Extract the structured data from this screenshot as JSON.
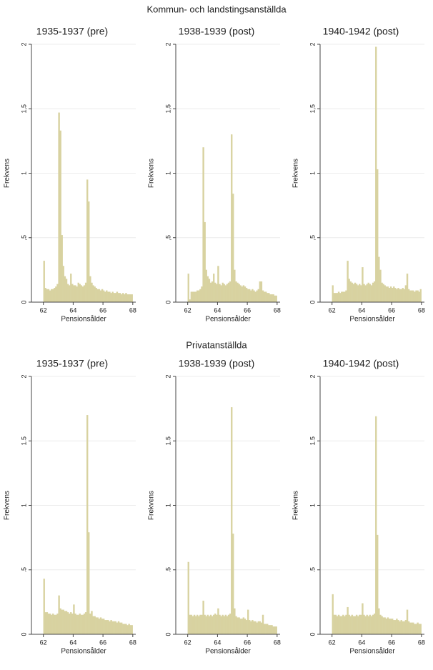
{
  "headings": [
    "Kommun- och landstingsanställda",
    "Privatanställda"
  ],
  "chart_data": [
    {
      "type": "histogram",
      "title": "1935-1937 (pre)",
      "xlabel": "Pensionsålder",
      "ylabel": "Frekvens",
      "color": "#d8d2a0",
      "grid": true,
      "xlim": [
        61.2,
        68.2
      ],
      "ylim": [
        0,
        2
      ],
      "xticks": [
        62,
        64,
        66,
        68
      ],
      "yticks": [
        0,
        {
          "value": 0.5,
          "label": ",5"
        },
        1,
        {
          "value": 1.5,
          "label": "1,5"
        },
        2
      ],
      "bins": [
        62,
        62.1,
        62.2,
        62.3,
        62.4,
        62.5,
        62.6,
        62.7,
        62.8,
        62.9,
        63,
        63.1,
        63.2,
        63.3,
        63.4,
        63.5,
        63.6,
        63.7,
        63.8,
        63.9,
        64,
        64.1,
        64.2,
        64.3,
        64.4,
        64.5,
        64.6,
        64.7,
        64.8,
        64.9,
        65,
        65.1,
        65.2,
        65.3,
        65.4,
        65.5,
        65.6,
        65.7,
        65.8,
        65.9,
        66,
        66.1,
        66.2,
        66.3,
        66.4,
        66.5,
        66.6,
        66.7,
        66.8,
        66.9,
        67,
        67.1,
        67.2,
        67.3,
        67.4,
        67.5,
        67.6,
        67.7,
        67.8,
        67.9,
        68
      ],
      "values": [
        0.32,
        0.11,
        0.1,
        0.1,
        0.09,
        0.1,
        0.1,
        0.11,
        0.12,
        0.14,
        1.47,
        1.33,
        0.52,
        0.28,
        0.2,
        0.18,
        0.14,
        0.13,
        0.22,
        0.14,
        0.13,
        0.13,
        0.12,
        0.15,
        0.14,
        0.13,
        0.12,
        0.13,
        0.15,
        0.95,
        0.78,
        0.2,
        0.15,
        0.13,
        0.12,
        0.11,
        0.1,
        0.1,
        0.09,
        0.1,
        0.09,
        0.08,
        0.09,
        0.08,
        0.08,
        0.07,
        0.08,
        0.07,
        0.07,
        0.08,
        0.07,
        0.07,
        0.06,
        0.07,
        0.06,
        0.07,
        0.06,
        0.06,
        0.06,
        0.06
      ]
    },
    {
      "type": "histogram",
      "title": "1938-1939 (post)",
      "xlabel": "Pensionsålder",
      "ylabel": "Frekvens",
      "color": "#d8d2a0",
      "grid": true,
      "xlim": [
        61.2,
        68.2
      ],
      "ylim": [
        0,
        2
      ],
      "xticks": [
        62,
        64,
        66,
        68
      ],
      "yticks": [
        0,
        {
          "value": 0.5,
          "label": ",5"
        },
        1,
        {
          "value": 1.5,
          "label": "1,5"
        },
        2
      ],
      "bins": [
        62,
        62.1,
        62.2,
        62.3,
        62.4,
        62.5,
        62.6,
        62.7,
        62.8,
        62.9,
        63,
        63.1,
        63.2,
        63.3,
        63.4,
        63.5,
        63.6,
        63.7,
        63.8,
        63.9,
        64,
        64.1,
        64.2,
        64.3,
        64.4,
        64.5,
        64.6,
        64.7,
        64.8,
        64.9,
        65,
        65.1,
        65.2,
        65.3,
        65.4,
        65.5,
        65.6,
        65.7,
        65.8,
        65.9,
        66,
        66.1,
        66.2,
        66.3,
        66.4,
        66.5,
        66.6,
        66.7,
        66.8,
        66.9,
        67,
        67.1,
        67.2,
        67.3,
        67.4,
        67.5,
        67.6,
        67.7,
        67.8,
        67.9,
        68
      ],
      "values": [
        0.22,
        0.02,
        0.08,
        0.08,
        0.08,
        0.08,
        0.09,
        0.09,
        0.1,
        0.12,
        1.2,
        0.62,
        0.25,
        0.2,
        0.18,
        0.15,
        0.16,
        0.22,
        0.15,
        0.14,
        0.28,
        0.14,
        0.13,
        0.15,
        0.14,
        0.13,
        0.14,
        0.15,
        0.16,
        1.3,
        0.84,
        0.25,
        0.16,
        0.15,
        0.14,
        0.13,
        0.12,
        0.13,
        0.12,
        0.11,
        0.1,
        0.1,
        0.09,
        0.1,
        0.09,
        0.08,
        0.09,
        0.1,
        0.16,
        0.16,
        0.09,
        0.08,
        0.08,
        0.07,
        0.07,
        0.06,
        0.06,
        0.06,
        0.05,
        0.05
      ]
    },
    {
      "type": "histogram",
      "title": "1940-1942 (post)",
      "xlabel": "Pensionsålder",
      "ylabel": "Frekvens",
      "color": "#d8d2a0",
      "grid": true,
      "xlim": [
        61.2,
        68.2
      ],
      "ylim": [
        0,
        2
      ],
      "xticks": [
        62,
        64,
        66,
        68
      ],
      "yticks": [
        0,
        {
          "value": 0.5,
          "label": ",5"
        },
        1,
        {
          "value": 1.5,
          "label": "1,5"
        },
        2
      ],
      "bins": [
        62,
        62.1,
        62.2,
        62.3,
        62.4,
        62.5,
        62.6,
        62.7,
        62.8,
        62.9,
        63,
        63.1,
        63.2,
        63.3,
        63.4,
        63.5,
        63.6,
        63.7,
        63.8,
        63.9,
        64,
        64.1,
        64.2,
        64.3,
        64.4,
        64.5,
        64.6,
        64.7,
        64.8,
        64.9,
        65,
        65.1,
        65.2,
        65.3,
        65.4,
        65.5,
        65.6,
        65.7,
        65.8,
        65.9,
        66,
        66.1,
        66.2,
        66.3,
        66.4,
        66.5,
        66.6,
        66.7,
        66.8,
        66.9,
        67,
        67.1,
        67.2,
        67.3,
        67.4,
        67.5,
        67.6,
        67.7,
        67.8,
        67.9,
        68
      ],
      "values": [
        0.13,
        0.07,
        0.07,
        0.07,
        0.08,
        0.07,
        0.08,
        0.08,
        0.08,
        0.09,
        0.32,
        0.18,
        0.16,
        0.15,
        0.14,
        0.15,
        0.14,
        0.13,
        0.14,
        0.13,
        0.27,
        0.14,
        0.13,
        0.14,
        0.15,
        0.14,
        0.13,
        0.15,
        0.16,
        1.98,
        1.03,
        0.35,
        0.25,
        0.15,
        0.14,
        0.13,
        0.12,
        0.12,
        0.11,
        0.12,
        0.11,
        0.12,
        0.11,
        0.1,
        0.11,
        0.1,
        0.1,
        0.11,
        0.1,
        0.13,
        0.22,
        0.1,
        0.09,
        0.09,
        0.09,
        0.08,
        0.09,
        0.09,
        0.08,
        0.1
      ]
    },
    {
      "type": "histogram",
      "title": "1935-1937 (pre)",
      "xlabel": "Pensionsålder",
      "ylabel": "Frekvens",
      "color": "#d8d2a0",
      "grid": true,
      "xlim": [
        61.2,
        68.2
      ],
      "ylim": [
        0,
        2
      ],
      "xticks": [
        62,
        64,
        66,
        68
      ],
      "yticks": [
        0,
        {
          "value": 0.5,
          "label": ".5"
        },
        1,
        1.5,
        2
      ],
      "bins": [
        62,
        62.1,
        62.2,
        62.3,
        62.4,
        62.5,
        62.6,
        62.7,
        62.8,
        62.9,
        63,
        63.1,
        63.2,
        63.3,
        63.4,
        63.5,
        63.6,
        63.7,
        63.8,
        63.9,
        64,
        64.1,
        64.2,
        64.3,
        64.4,
        64.5,
        64.6,
        64.7,
        64.8,
        64.9,
        65,
        65.1,
        65.2,
        65.3,
        65.4,
        65.5,
        65.6,
        65.7,
        65.8,
        65.9,
        66,
        66.1,
        66.2,
        66.3,
        66.4,
        66.5,
        66.6,
        66.7,
        66.8,
        66.9,
        67,
        67.1,
        67.2,
        67.3,
        67.4,
        67.5,
        67.6,
        67.7,
        67.8,
        67.9,
        68
      ],
      "values": [
        0.43,
        0.17,
        0.17,
        0.16,
        0.16,
        0.15,
        0.16,
        0.15,
        0.15,
        0.16,
        0.3,
        0.2,
        0.19,
        0.19,
        0.18,
        0.18,
        0.17,
        0.16,
        0.17,
        0.16,
        0.23,
        0.16,
        0.15,
        0.15,
        0.16,
        0.15,
        0.15,
        0.16,
        0.17,
        1.7,
        0.79,
        0.16,
        0.18,
        0.14,
        0.14,
        0.13,
        0.13,
        0.12,
        0.13,
        0.12,
        0.12,
        0.11,
        0.11,
        0.11,
        0.1,
        0.11,
        0.1,
        0.1,
        0.1,
        0.09,
        0.1,
        0.09,
        0.09,
        0.08,
        0.08,
        0.08,
        0.07,
        0.08,
        0.07,
        0.07
      ]
    },
    {
      "type": "histogram",
      "title": "1938-1939 (post)",
      "xlabel": "Pensionsålder",
      "ylabel": "Frekvens",
      "color": "#d8d2a0",
      "grid": true,
      "xlim": [
        61.2,
        68.2
      ],
      "ylim": [
        0,
        2
      ],
      "xticks": [
        62,
        64,
        66,
        68
      ],
      "yticks": [
        0,
        {
          "value": 0.5,
          "label": ".5"
        },
        1,
        1.5,
        2
      ],
      "bins": [
        62,
        62.1,
        62.2,
        62.3,
        62.4,
        62.5,
        62.6,
        62.7,
        62.8,
        62.9,
        63,
        63.1,
        63.2,
        63.3,
        63.4,
        63.5,
        63.6,
        63.7,
        63.8,
        63.9,
        64,
        64.1,
        64.2,
        64.3,
        64.4,
        64.5,
        64.6,
        64.7,
        64.8,
        64.9,
        65,
        65.1,
        65.2,
        65.3,
        65.4,
        65.5,
        65.6,
        65.7,
        65.8,
        65.9,
        66,
        66.1,
        66.2,
        66.3,
        66.4,
        66.5,
        66.6,
        66.7,
        66.8,
        66.9,
        67,
        67.1,
        67.2,
        67.3,
        67.4,
        67.5,
        67.6,
        67.7,
        67.8,
        67.9,
        68
      ],
      "values": [
        0.56,
        0.15,
        0.15,
        0.14,
        0.15,
        0.14,
        0.15,
        0.14,
        0.15,
        0.15,
        0.26,
        0.15,
        0.14,
        0.15,
        0.14,
        0.15,
        0.14,
        0.15,
        0.16,
        0.15,
        0.2,
        0.15,
        0.14,
        0.15,
        0.14,
        0.15,
        0.14,
        0.15,
        0.16,
        1.76,
        0.78,
        0.2,
        0.14,
        0.13,
        0.13,
        0.12,
        0.12,
        0.13,
        0.12,
        0.11,
        0.19,
        0.11,
        0.1,
        0.11,
        0.1,
        0.1,
        0.09,
        0.1,
        0.1,
        0.09,
        0.15,
        0.08,
        0.08,
        0.08,
        0.07,
        0.07,
        0.07,
        0.06,
        0.06,
        0.06
      ]
    },
    {
      "type": "histogram",
      "title": "1940-1942 (post)",
      "xlabel": "Pensionsålder",
      "ylabel": "Frekvens",
      "color": "#d8d2a0",
      "grid": true,
      "xlim": [
        61.2,
        68.2
      ],
      "ylim": [
        0,
        2
      ],
      "xticks": [
        62,
        64,
        66,
        68
      ],
      "yticks": [
        0,
        {
          "value": 0.5,
          "label": ".5"
        },
        1,
        1.5,
        2
      ],
      "bins": [
        62,
        62.1,
        62.2,
        62.3,
        62.4,
        62.5,
        62.6,
        62.7,
        62.8,
        62.9,
        63,
        63.1,
        63.2,
        63.3,
        63.4,
        63.5,
        63.6,
        63.7,
        63.8,
        63.9,
        64,
        64.1,
        64.2,
        64.3,
        64.4,
        64.5,
        64.6,
        64.7,
        64.8,
        64.9,
        65,
        65.1,
        65.2,
        65.3,
        65.4,
        65.5,
        65.6,
        65.7,
        65.8,
        65.9,
        66,
        66.1,
        66.2,
        66.3,
        66.4,
        66.5,
        66.6,
        66.7,
        66.8,
        66.9,
        67,
        67.1,
        67.2,
        67.3,
        67.4,
        67.5,
        67.6,
        67.7,
        67.8,
        67.9,
        68
      ],
      "values": [
        0.31,
        0.15,
        0.15,
        0.14,
        0.15,
        0.14,
        0.14,
        0.15,
        0.14,
        0.15,
        0.21,
        0.15,
        0.14,
        0.15,
        0.14,
        0.14,
        0.15,
        0.14,
        0.15,
        0.15,
        0.24,
        0.15,
        0.14,
        0.15,
        0.14,
        0.15,
        0.14,
        0.15,
        0.16,
        1.69,
        0.77,
        0.2,
        0.15,
        0.14,
        0.13,
        0.13,
        0.12,
        0.13,
        0.12,
        0.12,
        0.12,
        0.11,
        0.11,
        0.12,
        0.11,
        0.1,
        0.11,
        0.1,
        0.1,
        0.11,
        0.19,
        0.1,
        0.09,
        0.09,
        0.09,
        0.08,
        0.08,
        0.09,
        0.08,
        0.08
      ]
    }
  ]
}
